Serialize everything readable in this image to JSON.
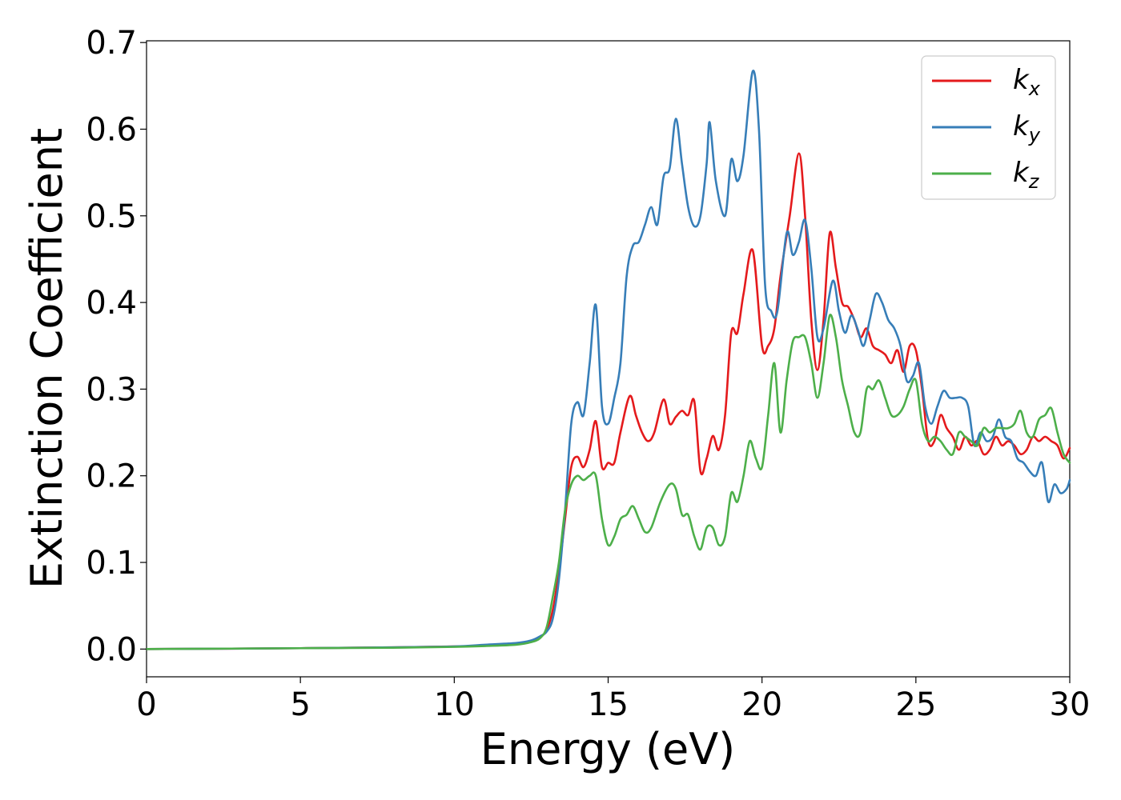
{
  "chart_data": {
    "type": "line",
    "title": "",
    "xlabel": "Energy (eV)",
    "ylabel": "Extinction Coefficient",
    "xlim": [
      0,
      30
    ],
    "ylim": [
      -0.032,
      0.702
    ],
    "xticks": [
      0,
      5,
      10,
      15,
      20,
      25,
      30
    ],
    "xtick_labels": [
      "0",
      "5",
      "10",
      "15",
      "20",
      "25",
      "30"
    ],
    "yticks": [
      0.0,
      0.1,
      0.2,
      0.3,
      0.4,
      0.5,
      0.6,
      0.7
    ],
    "ytick_labels": [
      "0.0",
      "0.1",
      "0.2",
      "0.3",
      "0.4",
      "0.5",
      "0.6",
      "0.7"
    ],
    "grid": false,
    "legend_position": "top-right",
    "series": [
      {
        "name": "k",
        "subscript": "x",
        "color": "#e41a1c",
        "points": [
          [
            0,
            0.0
          ],
          [
            5,
            0.001
          ],
          [
            8,
            0.002
          ],
          [
            10,
            0.003
          ],
          [
            11,
            0.004
          ],
          [
            12,
            0.006
          ],
          [
            12.5,
            0.009
          ],
          [
            12.8,
            0.014
          ],
          [
            13.0,
            0.022
          ],
          [
            13.2,
            0.045
          ],
          [
            13.4,
            0.09
          ],
          [
            13.6,
            0.15
          ],
          [
            13.8,
            0.21
          ],
          [
            14.0,
            0.222
          ],
          [
            14.2,
            0.21
          ],
          [
            14.4,
            0.23
          ],
          [
            14.6,
            0.263
          ],
          [
            14.8,
            0.21
          ],
          [
            15.0,
            0.215
          ],
          [
            15.2,
            0.215
          ],
          [
            15.4,
            0.25
          ],
          [
            15.7,
            0.292
          ],
          [
            15.9,
            0.27
          ],
          [
            16.1,
            0.25
          ],
          [
            16.3,
            0.24
          ],
          [
            16.5,
            0.25
          ],
          [
            16.8,
            0.288
          ],
          [
            17.0,
            0.26
          ],
          [
            17.2,
            0.268
          ],
          [
            17.4,
            0.275
          ],
          [
            17.6,
            0.27
          ],
          [
            17.8,
            0.286
          ],
          [
            18.0,
            0.205
          ],
          [
            18.2,
            0.22
          ],
          [
            18.4,
            0.246
          ],
          [
            18.6,
            0.23
          ],
          [
            18.8,
            0.27
          ],
          [
            19.0,
            0.365
          ],
          [
            19.2,
            0.365
          ],
          [
            19.4,
            0.41
          ],
          [
            19.7,
            0.46
          ],
          [
            20.0,
            0.35
          ],
          [
            20.2,
            0.35
          ],
          [
            20.4,
            0.37
          ],
          [
            20.6,
            0.43
          ],
          [
            20.9,
            0.5
          ],
          [
            21.2,
            0.572
          ],
          [
            21.4,
            0.5
          ],
          [
            21.6,
            0.38
          ],
          [
            21.8,
            0.322
          ],
          [
            22.0,
            0.38
          ],
          [
            22.2,
            0.48
          ],
          [
            22.4,
            0.44
          ],
          [
            22.6,
            0.4
          ],
          [
            22.8,
            0.395
          ],
          [
            23.0,
            0.38
          ],
          [
            23.2,
            0.36
          ],
          [
            23.4,
            0.37
          ],
          [
            23.6,
            0.35
          ],
          [
            23.8,
            0.345
          ],
          [
            24.0,
            0.34
          ],
          [
            24.2,
            0.33
          ],
          [
            24.4,
            0.345
          ],
          [
            24.6,
            0.32
          ],
          [
            24.8,
            0.35
          ],
          [
            25.0,
            0.345
          ],
          [
            25.2,
            0.3
          ],
          [
            25.4,
            0.24
          ],
          [
            25.6,
            0.24
          ],
          [
            25.8,
            0.27
          ],
          [
            26.0,
            0.255
          ],
          [
            26.2,
            0.245
          ],
          [
            26.4,
            0.23
          ],
          [
            26.6,
            0.245
          ],
          [
            26.8,
            0.235
          ],
          [
            27.0,
            0.24
          ],
          [
            27.2,
            0.225
          ],
          [
            27.4,
            0.23
          ],
          [
            27.6,
            0.245
          ],
          [
            27.8,
            0.235
          ],
          [
            28.0,
            0.24
          ],
          [
            28.2,
            0.235
          ],
          [
            28.4,
            0.225
          ],
          [
            28.6,
            0.23
          ],
          [
            28.8,
            0.245
          ],
          [
            29.0,
            0.24
          ],
          [
            29.2,
            0.245
          ],
          [
            29.4,
            0.24
          ],
          [
            29.6,
            0.235
          ],
          [
            29.8,
            0.22
          ],
          [
            30.0,
            0.232
          ]
        ]
      },
      {
        "name": "k",
        "subscript": "y",
        "color": "#377eb8",
        "points": [
          [
            0,
            0.0
          ],
          [
            5,
            0.001
          ],
          [
            8,
            0.002
          ],
          [
            10,
            0.003
          ],
          [
            11,
            0.005
          ],
          [
            12,
            0.007
          ],
          [
            12.5,
            0.01
          ],
          [
            12.8,
            0.015
          ],
          [
            13.0,
            0.02
          ],
          [
            13.2,
            0.035
          ],
          [
            13.4,
            0.08
          ],
          [
            13.6,
            0.16
          ],
          [
            13.8,
            0.26
          ],
          [
            14.0,
            0.285
          ],
          [
            14.2,
            0.27
          ],
          [
            14.4,
            0.33
          ],
          [
            14.6,
            0.397
          ],
          [
            14.8,
            0.28
          ],
          [
            15.0,
            0.26
          ],
          [
            15.2,
            0.29
          ],
          [
            15.4,
            0.33
          ],
          [
            15.6,
            0.43
          ],
          [
            15.8,
            0.465
          ],
          [
            16.0,
            0.47
          ],
          [
            16.2,
            0.49
          ],
          [
            16.4,
            0.51
          ],
          [
            16.6,
            0.49
          ],
          [
            16.8,
            0.545
          ],
          [
            17.0,
            0.555
          ],
          [
            17.2,
            0.612
          ],
          [
            17.4,
            0.56
          ],
          [
            17.6,
            0.51
          ],
          [
            17.8,
            0.488
          ],
          [
            18.0,
            0.5
          ],
          [
            18.2,
            0.56
          ],
          [
            18.3,
            0.608
          ],
          [
            18.5,
            0.54
          ],
          [
            18.8,
            0.5
          ],
          [
            19.0,
            0.565
          ],
          [
            19.2,
            0.54
          ],
          [
            19.4,
            0.57
          ],
          [
            19.7,
            0.667
          ],
          [
            19.9,
            0.6
          ],
          [
            20.1,
            0.42
          ],
          [
            20.3,
            0.39
          ],
          [
            20.5,
            0.39
          ],
          [
            20.8,
            0.48
          ],
          [
            21.0,
            0.455
          ],
          [
            21.2,
            0.47
          ],
          [
            21.4,
            0.495
          ],
          [
            21.6,
            0.44
          ],
          [
            21.8,
            0.36
          ],
          [
            22.0,
            0.37
          ],
          [
            22.3,
            0.425
          ],
          [
            22.5,
            0.39
          ],
          [
            22.7,
            0.365
          ],
          [
            22.9,
            0.385
          ],
          [
            23.1,
            0.37
          ],
          [
            23.3,
            0.35
          ],
          [
            23.5,
            0.38
          ],
          [
            23.7,
            0.41
          ],
          [
            23.9,
            0.4
          ],
          [
            24.1,
            0.38
          ],
          [
            24.3,
            0.37
          ],
          [
            24.5,
            0.35
          ],
          [
            24.7,
            0.31
          ],
          [
            24.9,
            0.315
          ],
          [
            25.1,
            0.33
          ],
          [
            25.3,
            0.28
          ],
          [
            25.5,
            0.26
          ],
          [
            25.7,
            0.28
          ],
          [
            25.9,
            0.298
          ],
          [
            26.1,
            0.29
          ],
          [
            26.3,
            0.29
          ],
          [
            26.5,
            0.29
          ],
          [
            26.7,
            0.28
          ],
          [
            26.9,
            0.235
          ],
          [
            27.1,
            0.25
          ],
          [
            27.3,
            0.24
          ],
          [
            27.5,
            0.245
          ],
          [
            27.7,
            0.265
          ],
          [
            27.9,
            0.245
          ],
          [
            28.1,
            0.24
          ],
          [
            28.3,
            0.22
          ],
          [
            28.5,
            0.215
          ],
          [
            28.7,
            0.205
          ],
          [
            28.9,
            0.2
          ],
          [
            29.1,
            0.215
          ],
          [
            29.3,
            0.17
          ],
          [
            29.5,
            0.19
          ],
          [
            29.7,
            0.18
          ],
          [
            29.9,
            0.185
          ],
          [
            30.0,
            0.195
          ]
        ]
      },
      {
        "name": "k",
        "subscript": "z",
        "color": "#4daf4a",
        "points": [
          [
            0,
            0.0
          ],
          [
            5,
            0.001
          ],
          [
            8,
            0.0015
          ],
          [
            10,
            0.0025
          ],
          [
            11,
            0.0035
          ],
          [
            12,
            0.005
          ],
          [
            12.5,
            0.008
          ],
          [
            12.8,
            0.013
          ],
          [
            13.0,
            0.025
          ],
          [
            13.2,
            0.06
          ],
          [
            13.4,
            0.1
          ],
          [
            13.6,
            0.16
          ],
          [
            13.8,
            0.19
          ],
          [
            14.0,
            0.2
          ],
          [
            14.2,
            0.195
          ],
          [
            14.4,
            0.2
          ],
          [
            14.6,
            0.2
          ],
          [
            14.8,
            0.15
          ],
          [
            15.0,
            0.12
          ],
          [
            15.2,
            0.13
          ],
          [
            15.4,
            0.15
          ],
          [
            15.6,
            0.155
          ],
          [
            15.8,
            0.165
          ],
          [
            16.0,
            0.15
          ],
          [
            16.2,
            0.135
          ],
          [
            16.4,
            0.14
          ],
          [
            16.7,
            0.17
          ],
          [
            17.0,
            0.19
          ],
          [
            17.2,
            0.185
          ],
          [
            17.4,
            0.155
          ],
          [
            17.6,
            0.155
          ],
          [
            17.8,
            0.13
          ],
          [
            18.0,
            0.115
          ],
          [
            18.2,
            0.14
          ],
          [
            18.4,
            0.14
          ],
          [
            18.6,
            0.12
          ],
          [
            18.8,
            0.13
          ],
          [
            19.0,
            0.18
          ],
          [
            19.2,
            0.17
          ],
          [
            19.4,
            0.2
          ],
          [
            19.6,
            0.24
          ],
          [
            19.8,
            0.22
          ],
          [
            20.0,
            0.21
          ],
          [
            20.2,
            0.27
          ],
          [
            20.4,
            0.33
          ],
          [
            20.6,
            0.25
          ],
          [
            20.8,
            0.31
          ],
          [
            21.0,
            0.355
          ],
          [
            21.2,
            0.36
          ],
          [
            21.4,
            0.36
          ],
          [
            21.6,
            0.33
          ],
          [
            21.8,
            0.29
          ],
          [
            22.0,
            0.33
          ],
          [
            22.2,
            0.385
          ],
          [
            22.4,
            0.36
          ],
          [
            22.6,
            0.31
          ],
          [
            22.8,
            0.28
          ],
          [
            23.0,
            0.25
          ],
          [
            23.2,
            0.25
          ],
          [
            23.4,
            0.3
          ],
          [
            23.6,
            0.3
          ],
          [
            23.8,
            0.31
          ],
          [
            24.0,
            0.29
          ],
          [
            24.2,
            0.27
          ],
          [
            24.4,
            0.27
          ],
          [
            24.6,
            0.28
          ],
          [
            24.8,
            0.3
          ],
          [
            25.0,
            0.31
          ],
          [
            25.2,
            0.26
          ],
          [
            25.4,
            0.24
          ],
          [
            25.6,
            0.245
          ],
          [
            25.8,
            0.24
          ],
          [
            26.0,
            0.23
          ],
          [
            26.2,
            0.225
          ],
          [
            26.4,
            0.25
          ],
          [
            26.6,
            0.245
          ],
          [
            26.8,
            0.24
          ],
          [
            27.0,
            0.235
          ],
          [
            27.2,
            0.255
          ],
          [
            27.4,
            0.25
          ],
          [
            27.6,
            0.255
          ],
          [
            27.8,
            0.255
          ],
          [
            28.0,
            0.255
          ],
          [
            28.2,
            0.26
          ],
          [
            28.4,
            0.275
          ],
          [
            28.6,
            0.25
          ],
          [
            28.8,
            0.245
          ],
          [
            29.0,
            0.265
          ],
          [
            29.2,
            0.27
          ],
          [
            29.4,
            0.278
          ],
          [
            29.6,
            0.25
          ],
          [
            29.8,
            0.225
          ],
          [
            30.0,
            0.215
          ]
        ]
      }
    ]
  }
}
